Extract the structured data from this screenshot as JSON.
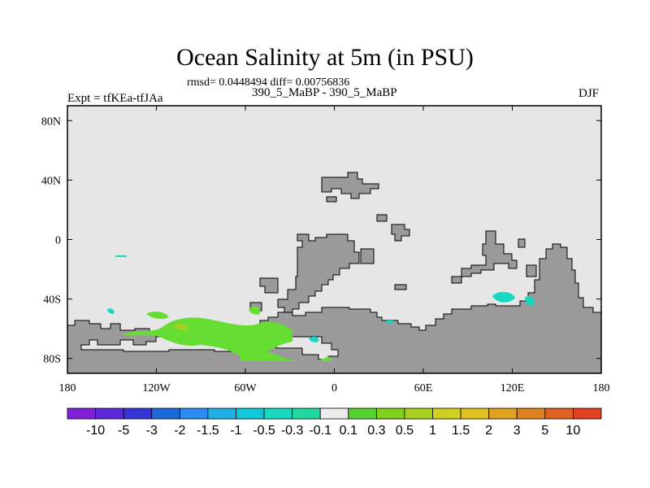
{
  "plot": {
    "title": "Ocean Salinity at 5m (in PSU)",
    "subtitle": "rmsd= 0.0448494 diff= 0.00756836",
    "center_label": "390_5_MaBP - 390_5_MaBP",
    "left_label": "Expt = tfKEa-tfJAa",
    "right_label": "DJF"
  },
  "axes": {
    "x_ticks": [
      "180",
      "120W",
      "60W",
      "0",
      "60E",
      "120E",
      "180"
    ],
    "y_ticks": [
      "80N",
      "40N",
      "0",
      "40S",
      "80S"
    ],
    "x_range": [
      -180,
      180
    ],
    "y_range": [
      -90,
      90
    ]
  },
  "colorbar": {
    "colors": [
      "#8020d8",
      "#5a28d8",
      "#3434d8",
      "#1a6adc",
      "#2a8cf0",
      "#20b0e8",
      "#10c8d8",
      "#18d8c0",
      "#20d8a0",
      "#ececec",
      "#58d030",
      "#80d020",
      "#a8d020",
      "#d0d020",
      "#e0c020",
      "#e0a020",
      "#e08020",
      "#e06020",
      "#e04020"
    ],
    "labels": [
      "-10",
      "-5",
      "-3",
      "-2",
      "-1.5",
      "-1",
      "-0.5",
      "-0.3",
      "-0.1",
      "0.1",
      "0.3",
      "0.5",
      "1",
      "1.5",
      "2",
      "3",
      "5",
      "10"
    ]
  },
  "colors": {
    "background": "#e6e6e6",
    "land": "#9a9a9a",
    "positive_anomaly": "#66dd33",
    "negative_anomaly": "#18d8c0"
  }
}
